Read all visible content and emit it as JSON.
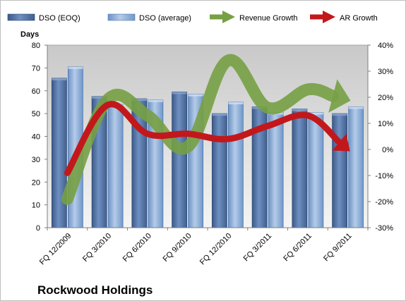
{
  "chart_data": {
    "type": "bar",
    "title": "Rockwood Holdings",
    "ylabel": "Days",
    "ylim": [
      0,
      80
    ],
    "y2lim": [
      -30,
      40
    ],
    "y_ticks": [
      "0",
      "10",
      "20",
      "30",
      "40",
      "50",
      "60",
      "70",
      "80"
    ],
    "y2_ticks": [
      "-30%",
      "-20%",
      "-10%",
      "0%",
      "10%",
      "20%",
      "30%",
      "40%"
    ],
    "categories": [
      "FQ 12/2009",
      "FQ 3/2010",
      "FQ 6/2010",
      "FQ 9/2010",
      "FQ 12/2010",
      "FQ 3/2011",
      "FQ 6/2011",
      "FQ 9/2011"
    ],
    "legend_position": "top",
    "grid": false,
    "series": [
      {
        "name": "DSO (EOQ)",
        "kind": "bar",
        "axis": "left",
        "color": "#4f6f9f",
        "values": [
          65.5,
          57.5,
          56.5,
          59.5,
          50,
          53,
          52,
          50
        ]
      },
      {
        "name": "DSO (average)",
        "kind": "bar",
        "axis": "left",
        "color": "#7fa3d1",
        "values": [
          70.5,
          54,
          56,
          58.5,
          55,
          50.5,
          50.5,
          53
        ]
      },
      {
        "name": "Revenue Growth",
        "kind": "line-arrow",
        "axis": "right",
        "color": "#77a044",
        "values": [
          -19,
          19,
          13,
          1,
          34,
          16,
          23,
          19
        ]
      },
      {
        "name": "AR Growth",
        "kind": "line-arrow",
        "axis": "right",
        "color": "#c2181c",
        "values": [
          -9,
          17,
          6,
          6,
          4,
          9,
          13,
          0
        ]
      }
    ]
  }
}
